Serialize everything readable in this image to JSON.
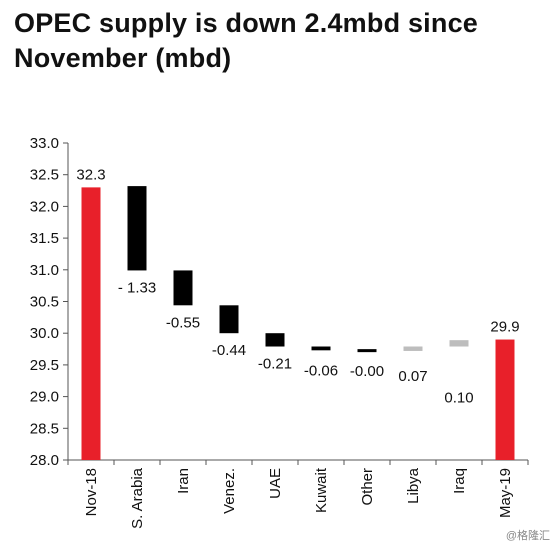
{
  "title": "OPEC supply is down 2.4mbd since November (mbd)",
  "watermark": "@格隆汇",
  "colors": {
    "total": "#e8202a",
    "decrease": "#000000",
    "increase": "#bdbdbd",
    "axis": "#555555"
  },
  "chart_data": {
    "type": "bar",
    "subtype": "waterfall",
    "title": "OPEC supply is down 2.4mbd since November (mbd)",
    "xlabel": "",
    "ylabel": "",
    "ylim": [
      28.0,
      33.0
    ],
    "ytick_step": 0.5,
    "ytick_labels": [
      "28.0",
      "28.5",
      "29.0",
      "29.5",
      "30.0",
      "30.5",
      "31.0",
      "31.5",
      "32.0",
      "32.5",
      "33.0"
    ],
    "grid": false,
    "legend": "none",
    "categories": [
      "Nov-18",
      "S. Arabia",
      "Iran",
      "Venez.",
      "UAE",
      "Kuwait",
      "Other",
      "Libya",
      "Iraq",
      "May-19"
    ],
    "bars": [
      {
        "category": "Nov-18",
        "kind": "total",
        "start": 28.0,
        "end": 32.3,
        "label": "32.3"
      },
      {
        "category": "S. Arabia",
        "kind": "decrease",
        "start": 32.32,
        "end": 30.99,
        "label": "- 1.33"
      },
      {
        "category": "Iran",
        "kind": "decrease",
        "start": 30.99,
        "end": 30.44,
        "label": "-0.55"
      },
      {
        "category": "Venez.",
        "kind": "decrease",
        "start": 30.44,
        "end": 30.0,
        "label": "-0.44"
      },
      {
        "category": "UAE",
        "kind": "decrease",
        "start": 30.0,
        "end": 29.79,
        "label": "-0.21"
      },
      {
        "category": "Kuwait",
        "kind": "decrease",
        "start": 29.79,
        "end": 29.73,
        "label": "-0.06"
      },
      {
        "category": "Other",
        "kind": "decrease",
        "start": 29.73,
        "end": 29.72,
        "label": "-0.00"
      },
      {
        "category": "Libya",
        "kind": "increase",
        "start": 29.72,
        "end": 29.79,
        "label": "0.07"
      },
      {
        "category": "Iraq",
        "kind": "increase",
        "start": 29.79,
        "end": 29.89,
        "label": "0.10"
      },
      {
        "category": "May-19",
        "kind": "total",
        "start": 28.0,
        "end": 29.9,
        "label": "29.9"
      }
    ]
  }
}
